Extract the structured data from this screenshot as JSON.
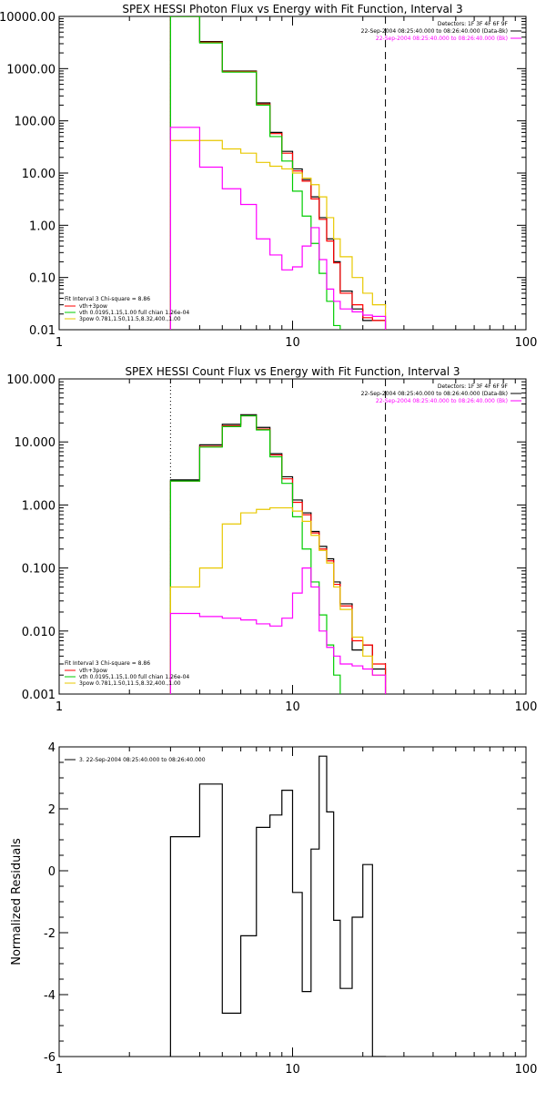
{
  "chart_data": [
    {
      "type": "line",
      "title": "SPEX HESSI Photon Flux vs Energy with Fit Function, Interval 3",
      "xscale": "log",
      "yscale": "log",
      "xlim": [
        1,
        100
      ],
      "ylim": [
        0.01,
        10000
      ],
      "grid": false,
      "x_tick_labels": [
        "1",
        "10",
        "100"
      ],
      "x_tick_values": [
        1,
        10,
        100
      ],
      "y_tick_labels": [
        "0.01",
        "0.10",
        "1.00",
        "10.00",
        "100.00",
        "1000.00",
        "10000.00"
      ],
      "y_tick_values": [
        0.01,
        0.1,
        1,
        10,
        100,
        1000,
        10000
      ],
      "info_top_right": [
        "Detectors: 1F 3F 4F 6F 9F",
        "22-Sep-2004 08:25:40.000 to 08:26:40.000 (Data-Bk)",
        "22-Sep-2004 08:25:40.000 to 08:26:40.000 (Bk)"
      ],
      "info_colors": [
        "#000000",
        "#000000",
        "#ff00ff"
      ],
      "legend_title": "Fit Interval 3   Chi-square = 8.86",
      "legend_entries": [
        {
          "label": "vth+3pow",
          "color": "#ff0000"
        },
        {
          "label": "vth 0.0195,1.15,1.00  full chian 1.26e-04",
          "color": "#00cc00"
        },
        {
          "label": "3pow 0.781,1.50,11.5,8.32,400.,1.00",
          "color": "#e8c800"
        }
      ],
      "vlines": [
        {
          "x": 3,
          "style": "dotted",
          "color": "#000000"
        },
        {
          "x": 25,
          "style": "dashed",
          "color": "#000000"
        }
      ],
      "edges": [
        3,
        4,
        5,
        6,
        7,
        8,
        9,
        10,
        11,
        12,
        13,
        14,
        15,
        16,
        18,
        20,
        22,
        25
      ],
      "series": [
        {
          "color": "#000000",
          "values": [
            10000,
            3300,
            900,
            900,
            220,
            60,
            26,
            12,
            7.5,
            3.5,
            1.4,
            0.55,
            0.2,
            0.055,
            0.025,
            0.015,
            0.015
          ]
        },
        {
          "color": "#ff0000",
          "values": [
            10000,
            3200,
            880,
            880,
            210,
            57,
            24,
            11,
            7,
            3.2,
            1.3,
            0.5,
            0.19,
            0.05,
            0.03,
            0.017,
            0.015
          ]
        },
        {
          "color": "#00cc00",
          "values": [
            10000,
            3100,
            860,
            860,
            200,
            50,
            17,
            4.5,
            1.5,
            0.45,
            0.12,
            0.035,
            0.012
          ]
        },
        {
          "color": "#e8c800",
          "values": [
            42,
            42,
            29,
            24,
            16,
            13.5,
            12,
            10,
            8,
            6,
            3.5,
            1.4,
            0.55,
            0.25,
            0.1,
            0.05,
            0.03
          ]
        },
        {
          "color": "#ff00ff",
          "values": [
            75,
            13,
            5,
            2.5,
            0.55,
            0.27,
            0.14,
            0.16,
            0.4,
            0.9,
            0.22,
            0.06,
            0.035,
            0.025,
            0.022,
            0.019,
            0.018
          ]
        }
      ]
    },
    {
      "type": "line",
      "title": "SPEX HESSI Count Flux vs Energy with Fit Function, Interval 3",
      "xscale": "log",
      "yscale": "log",
      "xlim": [
        1,
        100
      ],
      "ylim": [
        0.001,
        100
      ],
      "grid": false,
      "x_tick_labels": [
        "1",
        "10",
        "100"
      ],
      "x_tick_values": [
        1,
        10,
        100
      ],
      "y_tick_labels": [
        "0.001",
        "0.010",
        "0.100",
        "1.000",
        "10.000",
        "100.000"
      ],
      "y_tick_values": [
        0.001,
        0.01,
        0.1,
        1,
        10,
        100
      ],
      "info_top_right": [
        "Detectors: 1F 3F 4F 6F 9F",
        "22-Sep-2004 08:25:40.000 to 08:26:40.000 (Data-Bk)",
        "22-Sep-2004 08:25:40.000 to 08:26:40.000 (Bk)"
      ],
      "info_colors": [
        "#000000",
        "#000000",
        "#ff00ff"
      ],
      "legend_title": "Fit Interval 3   Chi-square = 8.86",
      "legend_entries": [
        {
          "label": "vth+3pow",
          "color": "#ff0000"
        },
        {
          "label": "vth 0.0195,1.15,1.00  full chian 1.26e-04",
          "color": "#00cc00"
        },
        {
          "label": "3pow 0.781,1.50,11.5,8.32,400.,1.00",
          "color": "#e8c800"
        }
      ],
      "vlines": [
        {
          "x": 3,
          "style": "dotted",
          "color": "#000000"
        },
        {
          "x": 25,
          "style": "dashed",
          "color": "#000000"
        }
      ],
      "edges": [
        3,
        4,
        5,
        6,
        7,
        8,
        9,
        10,
        11,
        12,
        13,
        14,
        15,
        16,
        18,
        20,
        22,
        25
      ],
      "series": [
        {
          "color": "#000000",
          "values": [
            2.5,
            9,
            19,
            27,
            17,
            6.5,
            2.8,
            1.2,
            0.75,
            0.38,
            0.22,
            0.14,
            0.06,
            0.027,
            0.005,
            0.006,
            0.0025
          ]
        },
        {
          "color": "#ff0000",
          "values": [
            2.4,
            8.5,
            18,
            26,
            16,
            6.2,
            2.6,
            1.1,
            0.7,
            0.36,
            0.2,
            0.13,
            0.055,
            0.025,
            0.007,
            0.006,
            0.003
          ]
        },
        {
          "color": "#00cc00",
          "values": [
            2.4,
            8.3,
            17.5,
            26,
            15.5,
            5.8,
            2.2,
            0.65,
            0.2,
            0.06,
            0.018,
            0.006,
            0.002
          ]
        },
        {
          "color": "#e8c800",
          "values": [
            0.05,
            0.1,
            0.5,
            0.75,
            0.85,
            0.9,
            0.9,
            0.8,
            0.55,
            0.33,
            0.19,
            0.12,
            0.05,
            0.022,
            0.008,
            0.004,
            0.002
          ]
        },
        {
          "color": "#ff00ff",
          "values": [
            0.019,
            0.017,
            0.016,
            0.015,
            0.013,
            0.012,
            0.016,
            0.04,
            0.1,
            0.05,
            0.01,
            0.0055,
            0.004,
            0.003,
            0.0028,
            0.0025,
            0.002
          ]
        }
      ]
    },
    {
      "type": "line",
      "title": "",
      "xscale": "log",
      "yscale": "linear",
      "xlim": [
        1,
        100
      ],
      "ylim": [
        -6,
        4
      ],
      "grid": false,
      "ylabel": "Normalized Residuals",
      "x_tick_labels": [
        "1",
        "10",
        "100"
      ],
      "x_tick_values": [
        1,
        10,
        100
      ],
      "y_tick_labels": [
        "-6",
        "-4",
        "-2",
        "0",
        "2",
        "4"
      ],
      "y_tick_values": [
        -6,
        -4,
        -2,
        0,
        2,
        4
      ],
      "legend_entries": [
        {
          "label": "3. 22-Sep-2004 08:25:40.000 to 08:26:40.000",
          "color": "#000000"
        }
      ],
      "edges": [
        3,
        4,
        5,
        6,
        7,
        8,
        9,
        10,
        11,
        12,
        13,
        14,
        15,
        16,
        18,
        20,
        22,
        25
      ],
      "series": [
        {
          "color": "#000000",
          "values": [
            1.1,
            2.8,
            -4.6,
            -2.1,
            1.4,
            1.8,
            2.6,
            -0.7,
            -3.9,
            0.7,
            3.7,
            1.9,
            -1.6,
            -3.8,
            -1.5,
            0.2,
            -6
          ]
        }
      ]
    }
  ]
}
